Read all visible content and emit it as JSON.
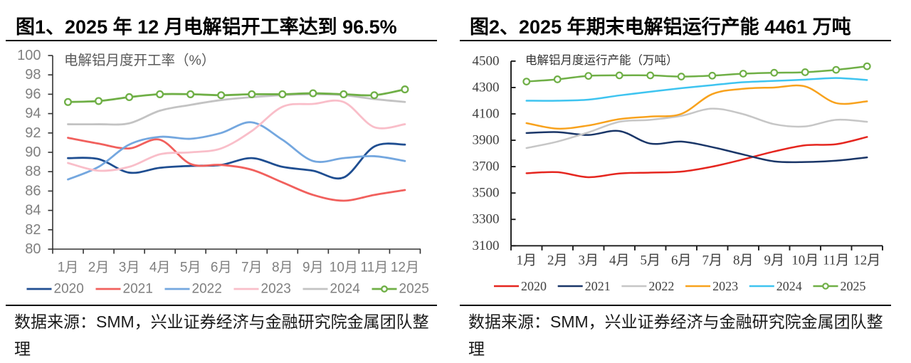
{
  "page_background": "#ffffff",
  "chart_data": [
    {
      "type": "line",
      "title": "图1、2025 年 12 月电解铝开工率达到 96.5%",
      "axis_label": "电解铝月度开工率（%）",
      "categories": [
        "1月",
        "2月",
        "3月",
        "4月",
        "5月",
        "6月",
        "7月",
        "8月",
        "9月",
        "10月",
        "11月",
        "12月"
      ],
      "ylim": [
        80,
        100
      ],
      "ystep": 2,
      "grid": false,
      "legend_position": "bottom",
      "smooth": true,
      "series": [
        {
          "name": "2020",
          "color": "#1F4E91",
          "values": [
            89.4,
            89.3,
            87.9,
            88.4,
            88.6,
            88.7,
            89.4,
            88.5,
            88.1,
            87.4,
            90.6,
            90.8
          ]
        },
        {
          "name": "2021",
          "color": "#F1605D",
          "values": [
            91.5,
            90.9,
            90.4,
            91.3,
            88.8,
            88.7,
            88.2,
            86.9,
            85.6,
            85.0,
            85.6,
            86.1
          ]
        },
        {
          "name": "2022",
          "color": "#74A7DF",
          "values": [
            87.2,
            88.5,
            90.8,
            91.6,
            91.4,
            92.0,
            93.1,
            91.3,
            89.1,
            89.4,
            89.6,
            89.1
          ]
        },
        {
          "name": "2023",
          "color": "#F9BEC9",
          "values": [
            88.9,
            88.1,
            88.5,
            89.8,
            90.0,
            90.4,
            92.2,
            94.7,
            95.0,
            95.2,
            92.6,
            92.9
          ]
        },
        {
          "name": "2024",
          "color": "#C3C3C3",
          "values": [
            92.9,
            92.9,
            93.0,
            94.3,
            94.9,
            95.4,
            95.7,
            95.9,
            96.0,
            95.9,
            95.5,
            95.2
          ]
        },
        {
          "name": "2025",
          "color": "#6FAF46",
          "marker": "circle",
          "values": [
            95.2,
            95.3,
            95.7,
            96.0,
            96.0,
            95.9,
            96.0,
            96.0,
            96.1,
            96.0,
            95.9,
            96.5
          ]
        }
      ]
    },
    {
      "type": "line",
      "title": "图2、2025 年期末电解铝运行产能 4461 万吨",
      "axis_label": "电解铝月度运行产能（万吨）",
      "categories": [
        "1月",
        "2月",
        "3月",
        "4月",
        "5月",
        "6月",
        "7月",
        "8月",
        "9月",
        "10月",
        "11月",
        "12月"
      ],
      "ylim": [
        3100,
        4500
      ],
      "ystep": 200,
      "grid": false,
      "legend_position": "bottom",
      "smooth": true,
      "series": [
        {
          "name": "2020",
          "color": "#E5261F",
          "values": [
            3650,
            3658,
            3620,
            3648,
            3655,
            3662,
            3700,
            3755,
            3815,
            3862,
            3870,
            3925
          ]
        },
        {
          "name": "2021",
          "color": "#1A3668",
          "values": [
            3955,
            3962,
            3940,
            3970,
            3875,
            3890,
            3848,
            3792,
            3740,
            3735,
            3745,
            3770
          ]
        },
        {
          "name": "2022",
          "color": "#C6C6C6",
          "values": [
            3841,
            3890,
            3960,
            4040,
            4055,
            4085,
            4140,
            4098,
            4022,
            4005,
            4055,
            4040
          ]
        },
        {
          "name": "2023",
          "color": "#F8A21D",
          "values": [
            4030,
            3988,
            4012,
            4060,
            4080,
            4100,
            4250,
            4290,
            4300,
            4308,
            4182,
            4195
          ]
        },
        {
          "name": "2024",
          "color": "#3EC4F0",
          "values": [
            4200,
            4200,
            4208,
            4240,
            4268,
            4295,
            4318,
            4340,
            4350,
            4360,
            4372,
            4357
          ]
        },
        {
          "name": "2025",
          "color": "#6FAF46",
          "marker": "circle",
          "values": [
            4345,
            4362,
            4388,
            4392,
            4392,
            4383,
            4390,
            4405,
            4412,
            4416,
            4434,
            4461
          ]
        }
      ]
    }
  ],
  "figures": [
    {
      "title": "图1、2025 年 12 月电解铝开工率达到 96.5%",
      "source_lines": [
        "数据来源：SMM，兴业证券经济与金融研究院金属团队整",
        "理"
      ]
    },
    {
      "title": "图2、2025 年期末电解铝运行产能 4461 万吨",
      "source_lines": [
        "数据来源：SMM，兴业证券经济与金融研究院金属团队整",
        "理"
      ]
    }
  ]
}
